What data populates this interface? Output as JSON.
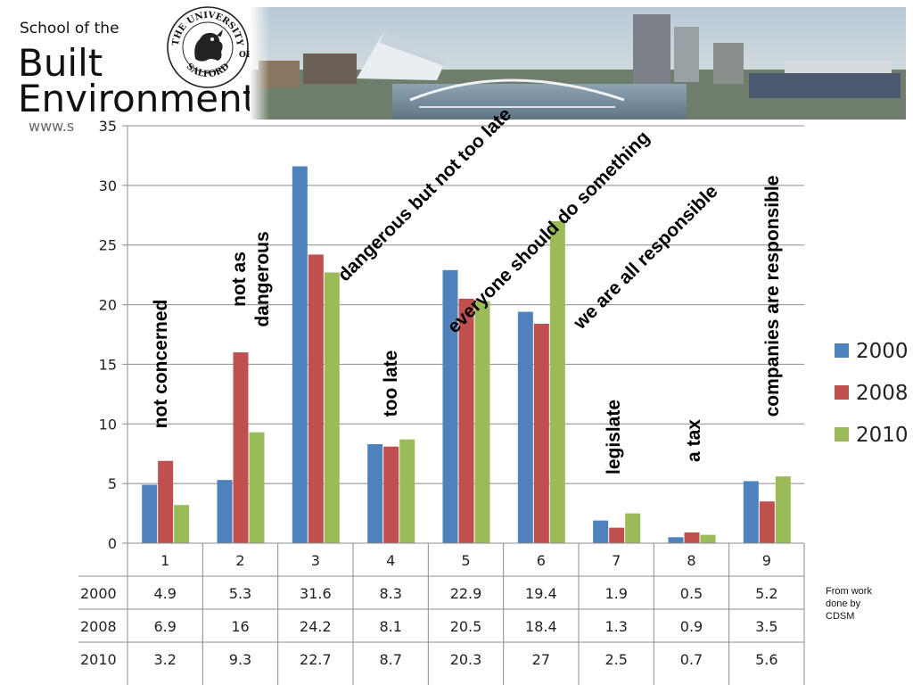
{
  "header": {
    "school_line1": "School of the",
    "school_line2": "Built",
    "school_line3": "Environment",
    "website": "www.s"
  },
  "seal": {
    "top_text": "THE UNIVERSITY",
    "right_text": "OF",
    "bottom_text": "SALFORD"
  },
  "credit": "From work done by CDSM",
  "colors": {
    "2000": "#4f81bd",
    "2008": "#c0504d",
    "2010": "#9bbb59"
  },
  "chart_data": {
    "type": "bar",
    "categories": [
      "1",
      "2",
      "3",
      "4",
      "5",
      "6",
      "7",
      "8",
      "9"
    ],
    "category_annotations": [
      "not concerned",
      "not as\ndangerous",
      "dangerous but not too late",
      "too late",
      "everyone should do something",
      "we are all responsible",
      "legislate",
      "a tax",
      "companies are responsible"
    ],
    "series": [
      {
        "name": "2000",
        "values": [
          4.9,
          5.3,
          31.6,
          8.3,
          22.9,
          19.4,
          1.9,
          0.5,
          5.2
        ]
      },
      {
        "name": "2008",
        "values": [
          6.9,
          16,
          24.2,
          8.1,
          20.5,
          18.4,
          1.3,
          0.9,
          3.5
        ]
      },
      {
        "name": "2010",
        "values": [
          3.2,
          9.3,
          22.7,
          8.7,
          20.3,
          27,
          2.5,
          0.7,
          5.6
        ]
      }
    ],
    "ylim": [
      0,
      35
    ],
    "yticks": [
      0,
      5,
      10,
      15,
      20,
      25,
      30,
      35
    ],
    "grid": true,
    "legend_position": "right",
    "data_table": true
  }
}
